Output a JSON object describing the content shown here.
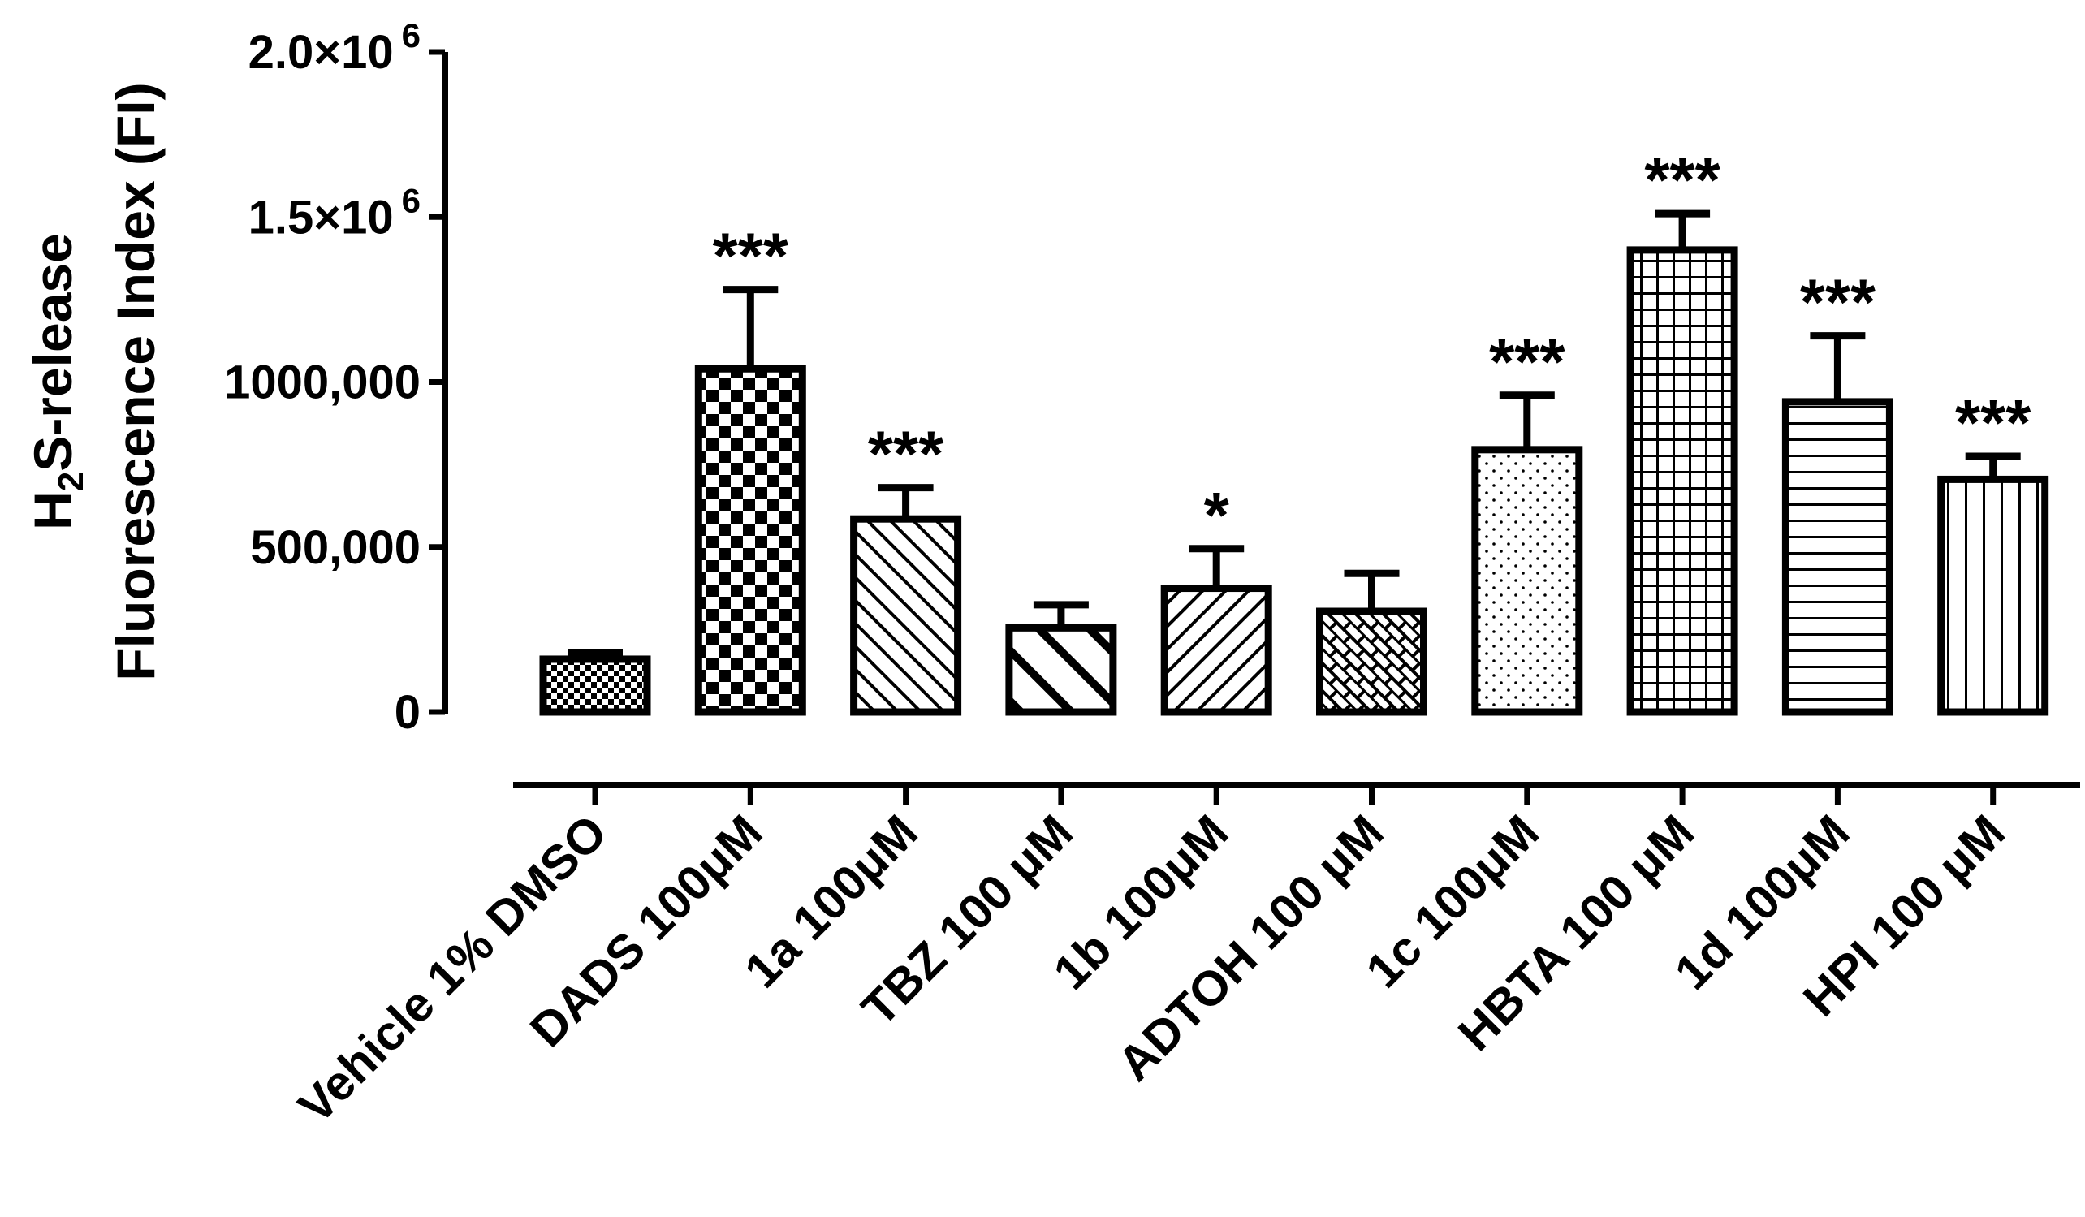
{
  "chart_data": {
    "type": "bar",
    "title": "",
    "ylabel_line1": {
      "prefix": "H",
      "sub": "2",
      "suffix": "S-release"
    },
    "ylabel_line2": "Fluorescence Index (FI)",
    "xlabel": "",
    "ylim": [
      0,
      2000000
    ],
    "ytick_values": [
      0,
      500000,
      1000000,
      1500000,
      2000000
    ],
    "yticks": [
      {
        "label": "0",
        "sup": ""
      },
      {
        "label": "500,000",
        "sup": ""
      },
      {
        "label": "1000,000",
        "sup": ""
      },
      {
        "label": "1.5×10",
        "sup": "6"
      },
      {
        "label": "2.0×10",
        "sup": "6"
      }
    ],
    "categories": [
      "Vehicle  1% DMSO",
      "DADS 100μM",
      "1a 100μM",
      "TBZ 100 μM",
      "1b 100μM",
      "ADTOH 100 μM",
      "1c 100μM",
      "HBTA 100 μM",
      "1d 100μM",
      "HPI 100 μM"
    ],
    "values": [
      160000,
      1040000,
      585000,
      255000,
      375000,
      305000,
      795000,
      1400000,
      940000,
      705000
    ],
    "errors": [
      20000,
      240000,
      95000,
      70000,
      120000,
      115000,
      165000,
      110000,
      200000,
      70000
    ],
    "significance": [
      "",
      "***",
      "***",
      "",
      "*",
      "",
      "***",
      "***",
      "***",
      "***"
    ],
    "patterns": [
      "small-check",
      "checker",
      "diag-back",
      "wide-diag-back",
      "diag-fwd",
      "brick",
      "dots",
      "grid",
      "hlines",
      "vlines"
    ]
  }
}
